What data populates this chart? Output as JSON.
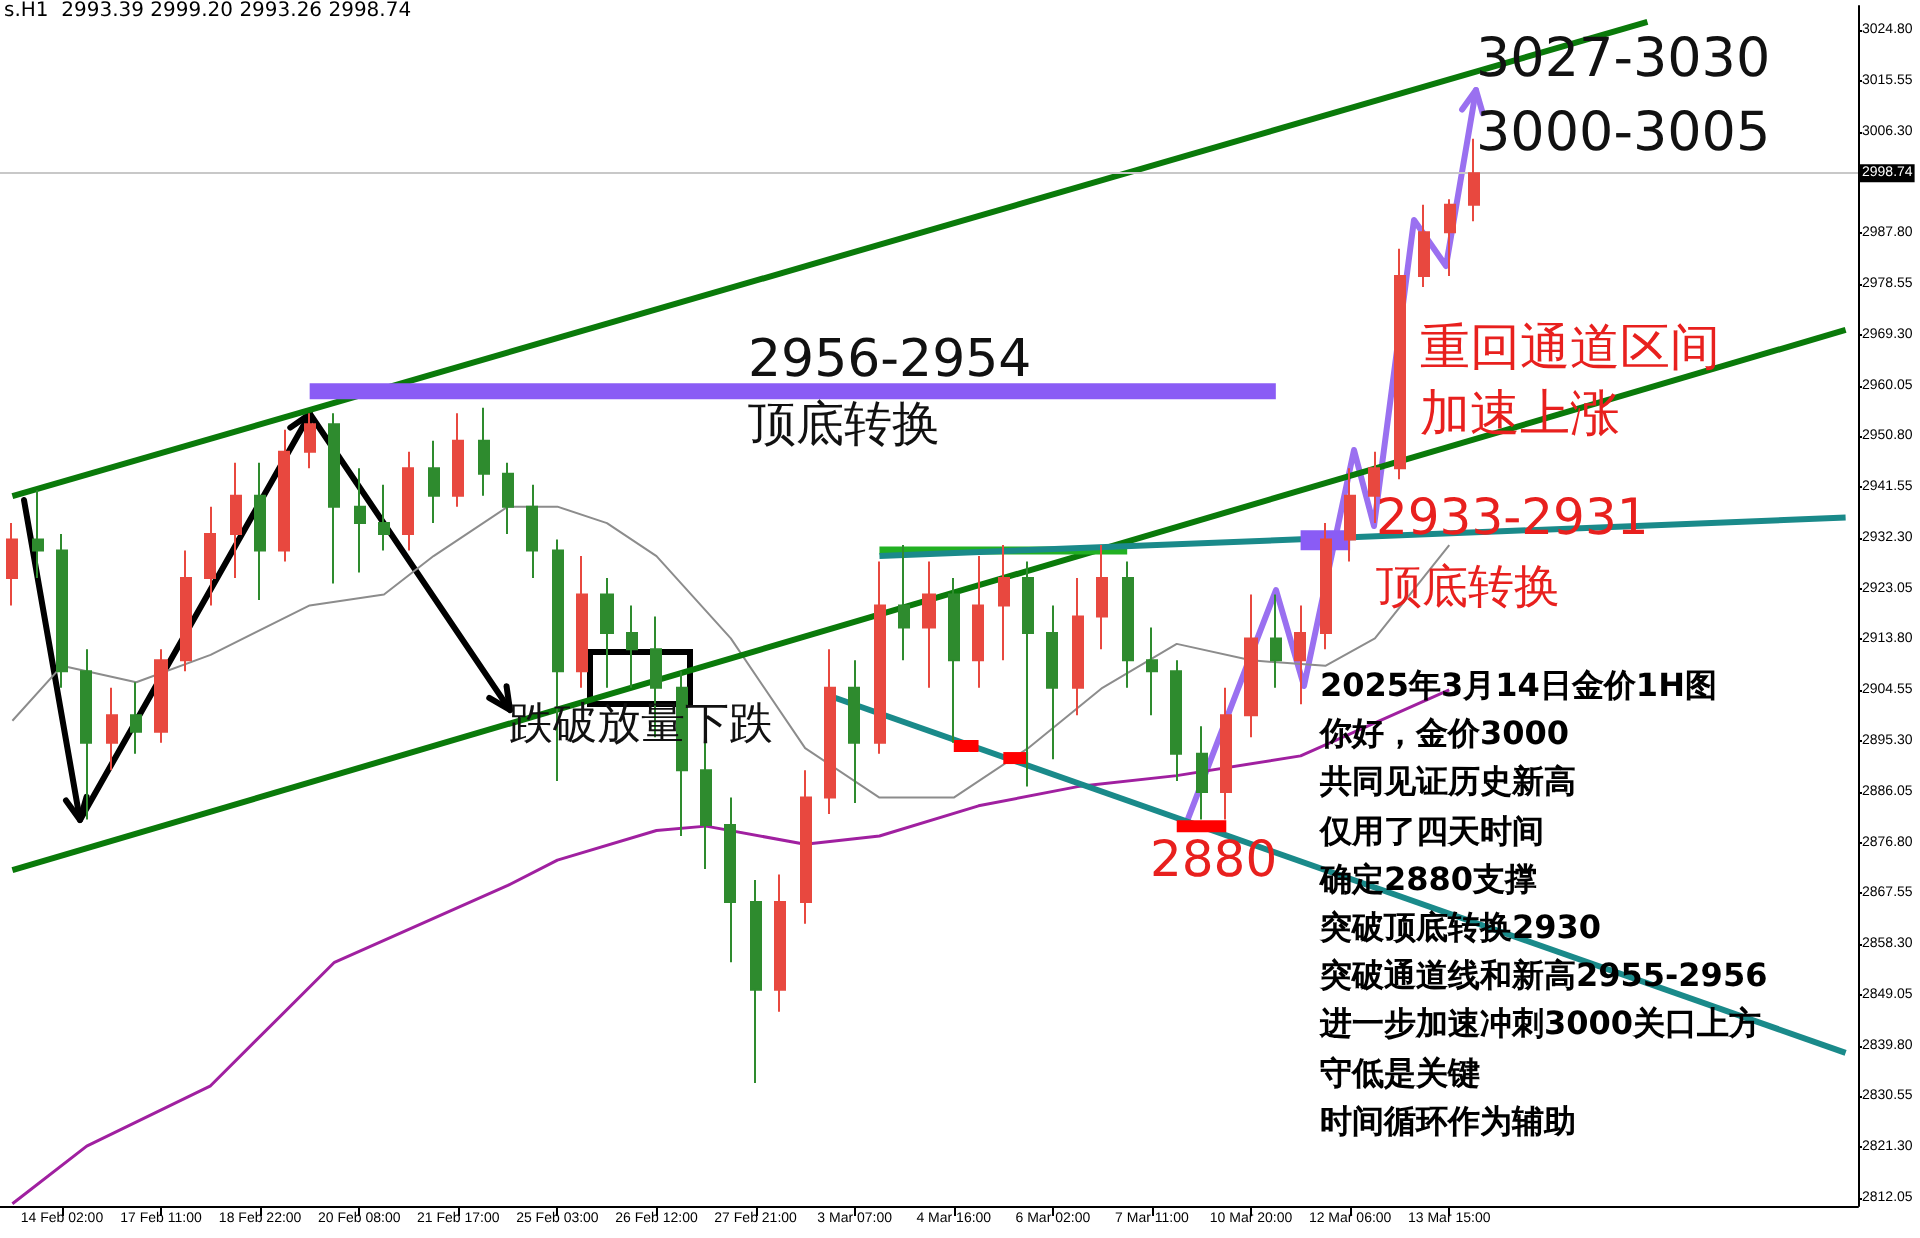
{
  "chart_data": {
    "type": "candlestick",
    "categories": [
      null,
      null,
      "14 Feb 02:00",
      null,
      null,
      null,
      "17 Feb 11:00",
      null,
      null,
      null,
      "18 Feb 22:00",
      null,
      null,
      null,
      "20 Feb 08:00",
      null,
      null,
      null,
      "21 Feb 17:00",
      null,
      null,
      null,
      "25 Feb 03:00",
      null,
      null,
      null,
      "26 Feb 12:00",
      null,
      null,
      null,
      "27 Feb 21:00",
      null,
      null,
      null,
      "3 Mar 07:00",
      null,
      null,
      null,
      "4 Mar 16:00",
      null,
      null,
      null,
      "6 Mar 02:00",
      null,
      null,
      null,
      "7 Mar 11:00",
      null,
      null,
      null,
      "10 Mar 20:00",
      null,
      null,
      null,
      "12 Mar 06:00",
      null,
      null,
      null,
      "13 Mar 15:00",
      null,
      null,
      null,
      null,
      null,
      null,
      null,
      null,
      null,
      null,
      null,
      null,
      null,
      null,
      null,
      null
    ],
    "ohlc": [
      [
        2925,
        2935,
        2920,
        2932
      ],
      [
        2932,
        2941,
        2925,
        2930
      ],
      [
        2930,
        2933,
        2905,
        2908
      ],
      [
        2908,
        2912,
        2881,
        2895
      ],
      [
        2895,
        2905,
        2890,
        2900
      ],
      [
        2900,
        2906,
        2893,
        2897
      ],
      [
        2897,
        2912,
        2895,
        2910
      ],
      [
        2910,
        2930,
        2908,
        2925
      ],
      [
        2925,
        2938,
        2920,
        2933
      ],
      [
        2933,
        2946,
        2925,
        2940
      ],
      [
        2940,
        2946,
        2921,
        2930
      ],
      [
        2930,
        2952,
        2928,
        2948
      ],
      [
        2948,
        2955,
        2945,
        2953
      ],
      [
        2953,
        2955,
        2924,
        2938
      ],
      [
        2938,
        2945,
        2926,
        2935
      ],
      [
        2935,
        2942,
        2930,
        2933
      ],
      [
        2933,
        2948,
        2930,
        2945
      ],
      [
        2945,
        2950,
        2935,
        2940
      ],
      [
        2940,
        2955,
        2938,
        2950
      ],
      [
        2950,
        2956,
        2940,
        2944
      ],
      [
        2944,
        2946,
        2933,
        2938
      ],
      [
        2938,
        2942,
        2925,
        2930
      ],
      [
        2930,
        2932,
        2888,
        2908
      ],
      [
        2908,
        2929,
        2905,
        2922
      ],
      [
        2922,
        2925,
        2905,
        2915
      ],
      [
        2915,
        2920,
        2905,
        2912
      ],
      [
        2912,
        2918,
        2896,
        2905
      ],
      [
        2905,
        2908,
        2878,
        2890
      ],
      [
        2890,
        2895,
        2872,
        2880
      ],
      [
        2880,
        2885,
        2855,
        2866
      ],
      [
        2866,
        2870,
        2833,
        2850
      ],
      [
        2850,
        2871,
        2846,
        2866
      ],
      [
        2866,
        2890,
        2862,
        2885
      ],
      [
        2885,
        2912,
        2882,
        2905
      ],
      [
        2905,
        2910,
        2884,
        2895
      ],
      [
        2895,
        2928,
        2893,
        2920
      ],
      [
        2920,
        2931,
        2910,
        2916
      ],
      [
        2916,
        2928,
        2905,
        2922
      ],
      [
        2922,
        2925,
        2895,
        2910
      ],
      [
        2910,
        2929,
        2905,
        2920
      ],
      [
        2920,
        2931,
        2910,
        2925
      ],
      [
        2925,
        2928,
        2887,
        2915
      ],
      [
        2915,
        2920,
        2892,
        2905
      ],
      [
        2905,
        2925,
        2900,
        2918
      ],
      [
        2918,
        2931,
        2912,
        2925
      ],
      [
        2925,
        2928,
        2905,
        2910
      ],
      [
        2910,
        2916,
        2900,
        2908
      ],
      [
        2908,
        2910,
        2888,
        2893
      ],
      [
        2893,
        2898,
        2881,
        2886
      ],
      [
        2886,
        2905,
        2881,
        2900
      ],
      [
        2900,
        2922,
        2896,
        2914
      ],
      [
        2914,
        2922,
        2905,
        2910
      ],
      [
        2910,
        2920,
        2902,
        2915
      ],
      [
        2915,
        2935,
        2912,
        2932
      ],
      [
        2932,
        2945,
        2928,
        2940
      ],
      [
        2940,
        2948,
        2935,
        2945
      ],
      [
        2945,
        2985,
        2943,
        2980
      ],
      [
        2980,
        2993,
        2978,
        2988
      ],
      [
        2988,
        2994,
        2980,
        2993
      ],
      [
        2993,
        3005,
        2990,
        2998.74
      ],
      null,
      null,
      null,
      null,
      null,
      null,
      null,
      null,
      null,
      null,
      null,
      null,
      null,
      null,
      null
    ],
    "series": [
      {
        "type": "line",
        "color": "#8c8c8c",
        "values": [
          2899,
          null,
          2909,
          null,
          null,
          2906,
          null,
          null,
          2911,
          null,
          null,
          null,
          2920,
          null,
          null,
          2922,
          null,
          2929,
          null,
          null,
          2938,
          null,
          2938,
          null,
          2935,
          null,
          2929,
          null,
          null,
          2914,
          null,
          null,
          2894,
          null,
          null,
          2885,
          null,
          null,
          2885,
          null,
          null,
          2894,
          null,
          null,
          2905,
          null,
          null,
          2913,
          null,
          null,
          2910,
          null,
          null,
          2909,
          null,
          2914,
          null,
          null,
          2931,
          null,
          null,
          null,
          null,
          null,
          null,
          null,
          null,
          null,
          null,
          null,
          null,
          null,
          null,
          null,
          null
        ]
      },
      {
        "type": "line",
        "color": "#a020a0",
        "values": [
          2811,
          null,
          null,
          2821.5,
          null,
          null,
          null,
          null,
          2832.5,
          null,
          null,
          null,
          null,
          2855,
          null,
          null,
          null,
          null,
          null,
          null,
          2869,
          null,
          2873.6,
          null,
          null,
          null,
          2879,
          null,
          2879.8,
          null,
          null,
          null,
          2876.5,
          null,
          null,
          2878,
          null,
          null,
          null,
          2883.5,
          null,
          null,
          null,
          2887,
          null,
          null,
          null,
          2889,
          null,
          null,
          null,
          null,
          2892.6,
          null,
          null,
          null,
          null,
          null,
          2904.6,
          null,
          null,
          null,
          null,
          null,
          null,
          null,
          null,
          null,
          null,
          null,
          null,
          null,
          null,
          null,
          null
        ]
      },
      {
        "type": "line",
        "color": "#0a7a0a",
        "values": [
          2939.9,
          null,
          null,
          null,
          null,
          null,
          null,
          null,
          null,
          null,
          null,
          null,
          null,
          null,
          null,
          null,
          null,
          null,
          null,
          null,
          null,
          null,
          null,
          null,
          null,
          null,
          null,
          null,
          null,
          null,
          null,
          null,
          null,
          null,
          null,
          null,
          null,
          null,
          null,
          null,
          null,
          null,
          null,
          null,
          null,
          null,
          null,
          null,
          null,
          null,
          null,
          null,
          null,
          null,
          null,
          null,
          null,
          null,
          null,
          null,
          null,
          null,
          null,
          null,
          null,
          null,
          3026.3,
          null,
          null,
          null,
          null,
          null,
          null,
          null,
          null
        ]
      },
      {
        "type": "line",
        "color": "#0a7a0a",
        "values": [
          2871.8,
          null,
          null,
          null,
          null,
          null,
          null,
          null,
          null,
          null,
          null,
          null,
          null,
          null,
          null,
          null,
          null,
          null,
          null,
          null,
          null,
          null,
          null,
          null,
          null,
          null,
          null,
          null,
          null,
          null,
          null,
          null,
          null,
          null,
          null,
          null,
          null,
          null,
          null,
          null,
          null,
          null,
          null,
          null,
          null,
          null,
          null,
          null,
          null,
          null,
          null,
          null,
          null,
          null,
          null,
          null,
          null,
          null,
          null,
          null,
          null,
          null,
          null,
          null,
          null,
          null,
          null,
          null,
          null,
          null,
          null,
          null,
          null,
          null,
          2970.2
        ]
      },
      {
        "type": "line",
        "color": "#22b022",
        "values": [
          null,
          null,
          null,
          null,
          null,
          null,
          null,
          null,
          null,
          null,
          null,
          null,
          null,
          null,
          null,
          null,
          null,
          null,
          null,
          null,
          null,
          null,
          null,
          null,
          null,
          null,
          null,
          null,
          null,
          null,
          null,
          null,
          null,
          null,
          null,
          2930,
          null,
          null,
          null,
          null,
          null,
          null,
          null,
          null,
          null,
          2930,
          null,
          null,
          null,
          null,
          null,
          null,
          null,
          null,
          null,
          null,
          null,
          null,
          null,
          null,
          null,
          null,
          null,
          null,
          null,
          null,
          null,
          null,
          null,
          null,
          null,
          null,
          null,
          null,
          null
        ]
      },
      {
        "type": "line",
        "color": "#1a8a8a",
        "values": [
          null,
          null,
          null,
          null,
          null,
          null,
          null,
          null,
          null,
          null,
          null,
          null,
          null,
          null,
          null,
          null,
          null,
          null,
          null,
          null,
          null,
          null,
          null,
          null,
          null,
          null,
          null,
          null,
          null,
          null,
          null,
          null,
          null,
          null,
          null,
          2929,
          null,
          null,
          null,
          null,
          null,
          null,
          null,
          null,
          null,
          null,
          null,
          null,
          null,
          null,
          null,
          null,
          null,
          null,
          null,
          null,
          null,
          null,
          null,
          null,
          null,
          null,
          null,
          null,
          null,
          null,
          null,
          null,
          null,
          null,
          null,
          null,
          null,
          null,
          2936
        ]
      },
      {
        "type": "line",
        "color": "#1a8a8a",
        "values": [
          null,
          null,
          null,
          null,
          null,
          null,
          null,
          null,
          null,
          null,
          null,
          null,
          null,
          null,
          null,
          null,
          null,
          null,
          null,
          null,
          null,
          null,
          null,
          null,
          null,
          null,
          null,
          null,
          null,
          null,
          null,
          null,
          null,
          2903.5,
          null,
          null,
          null,
          null,
          null,
          null,
          null,
          null,
          null,
          null,
          null,
          null,
          null,
          null,
          null,
          null,
          null,
          null,
          null,
          null,
          null,
          null,
          null,
          null,
          null,
          null,
          null,
          null,
          null,
          null,
          null,
          null,
          null,
          null,
          null,
          null,
          null,
          null,
          null,
          null,
          2838.5
        ]
      },
      {
        "type": "line",
        "color": "#8a5cf5",
        "values": [
          null,
          null,
          null,
          null,
          null,
          null,
          null,
          null,
          null,
          null,
          null,
          null,
          2959,
          null,
          null,
          null,
          null,
          null,
          null,
          null,
          null,
          null,
          null,
          null,
          null,
          null,
          null,
          null,
          null,
          null,
          null,
          null,
          null,
          null,
          null,
          null,
          null,
          null,
          null,
          null,
          null,
          null,
          null,
          null,
          null,
          null,
          null,
          null,
          null,
          null,
          null,
          2959,
          null,
          null,
          null,
          null,
          null,
          null,
          null,
          null,
          null,
          null,
          null,
          null,
          null,
          null,
          null,
          null,
          null,
          null,
          null,
          null,
          null,
          null,
          null
        ]
      },
      {
        "type": "line",
        "color": "#ff0000",
        "values": [
          null,
          null,
          null,
          null,
          null,
          null,
          null,
          null,
          null,
          null,
          null,
          null,
          null,
          null,
          null,
          null,
          null,
          null,
          null,
          null,
          null,
          null,
          null,
          null,
          null,
          null,
          null,
          null,
          null,
          null,
          null,
          null,
          null,
          null,
          null,
          null,
          null,
          null,
          2894.4,
          2894.4,
          null,
          null,
          null,
          null,
          null,
          null,
          null,
          null,
          null,
          null,
          null,
          null,
          null,
          null,
          null,
          null,
          null,
          null,
          null,
          null,
          null,
          null,
          null,
          null,
          null,
          null,
          null,
          null,
          null,
          null,
          null,
          null,
          null,
          null,
          null
        ]
      },
      {
        "type": "line",
        "color": "#ff0000",
        "values": [
          null,
          null,
          null,
          null,
          null,
          null,
          null,
          null,
          null,
          null,
          null,
          null,
          null,
          null,
          null,
          null,
          null,
          null,
          null,
          null,
          null,
          null,
          null,
          null,
          null,
          null,
          null,
          null,
          null,
          null,
          null,
          null,
          null,
          null,
          null,
          null,
          null,
          null,
          null,
          null,
          2892.2,
          2892.2,
          null,
          null,
          null,
          null,
          null,
          null,
          null,
          null,
          null,
          null,
          null,
          null,
          null,
          null,
          null,
          null,
          null,
          null,
          null,
          null,
          null,
          null,
          null,
          null,
          null,
          null,
          null,
          null,
          null,
          null,
          null,
          null,
          null
        ]
      },
      {
        "type": "line",
        "color": "#ff0000",
        "values": [
          null,
          null,
          null,
          null,
          null,
          null,
          null,
          null,
          null,
          null,
          null,
          null,
          null,
          null,
          null,
          null,
          null,
          null,
          null,
          null,
          null,
          null,
          null,
          null,
          null,
          null,
          null,
          null,
          null,
          null,
          null,
          null,
          null,
          null,
          null,
          null,
          null,
          null,
          null,
          null,
          null,
          null,
          null,
          null,
          null,
          null,
          null,
          2879.8,
          null,
          2879.8,
          null,
          null,
          null,
          null,
          null,
          null,
          null,
          null,
          null,
          null,
          null,
          null,
          null,
          null,
          null,
          null,
          null,
          null,
          null,
          null,
          null,
          null,
          null,
          null,
          null
        ]
      },
      {
        "type": "line",
        "color": "#8a5cf5",
        "values": [
          null,
          null,
          null,
          null,
          null,
          null,
          null,
          null,
          null,
          null,
          null,
          null,
          null,
          null,
          null,
          null,
          null,
          null,
          null,
          null,
          null,
          null,
          null,
          null,
          null,
          null,
          null,
          null,
          null,
          null,
          null,
          null,
          null,
          null,
          null,
          null,
          null,
          null,
          null,
          null,
          null,
          null,
          null,
          null,
          null,
          null,
          null,
          null,
          null,
          null,
          null,
          null,
          2931.9,
          null,
          2931.9,
          null,
          null,
          null,
          null,
          null,
          null,
          null,
          null,
          null,
          null,
          null,
          null,
          null,
          null,
          null,
          null,
          null,
          null,
          null,
          null
        ]
      }
    ],
    "ylim": [
      2810.6,
      3029.2
    ],
    "yticks": [
      2812.05,
      {
        "value": 2821.3,
        "label": "2821.30"
      },
      2830.55,
      {
        "value": 2839.8,
        "label": "2839.80"
      },
      2849.05,
      {
        "value": 2858.3,
        "label": "2858.30"
      },
      2867.55,
      {
        "value": 2876.8,
        "label": "2876.80"
      },
      2886.05,
      {
        "value": 2895.3,
        "label": "2895.30"
      },
      2904.55,
      {
        "value": 2913.8,
        "label": "2913.80"
      },
      2923.05,
      {
        "value": 2932.3,
        "label": "2932.30"
      },
      2941.55,
      {
        "value": 2950.8,
        "label": "2950.80"
      },
      2960.05,
      {
        "value": 2969.3,
        "label": "2969.30"
      },
      2978.55,
      {
        "value": 2987.8,
        "label": "2987.80"
      },
      {
        "value": 3006.3,
        "label": "3006.30"
      },
      3015.55,
      {
        "value": 3024.8,
        "label": "3024.80"
      }
    ],
    "ref_lines": [
      {
        "axis": "y",
        "value": 2998.74,
        "label": "2998.74",
        "color": "#c8c8c8"
      }
    ],
    "grid": false,
    "annotations": [
      "s.H1  2993.39 2999.20 2993.26 2998.74",
      "2956-2954",
      "顶底转换",
      {
        "text": "跌破放量下跌",
        "x": "25 Feb 03:00",
        "y": 2901
      },
      "3027-3030",
      "3000-3005",
      "重回通道区间",
      "加速上涨",
      "2933-2931",
      "顶底转换",
      "2880",
      "2025年3月14日金价1H图",
      "你好，金价3000",
      "共同见证历史新高",
      "仅用了四天时间",
      "确定2880支撑",
      "突破顶底转换2930",
      "突破通道线和新高2955-2956",
      "进一步加速冲刺3000关口上方",
      "守低是关键",
      "时间循环作为辅助"
    ]
  }
}
